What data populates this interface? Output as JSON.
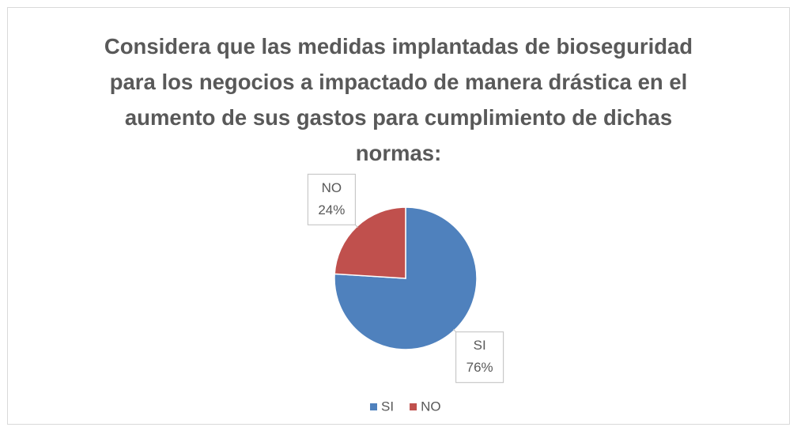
{
  "chart_data": {
    "type": "pie",
    "title": "Considera que las medidas implantadas de bioseguridad para los negocios a impactado de manera drástica en el aumento de sus gastos para cumplimiento de dichas normas:",
    "categories": [
      "SI",
      "NO"
    ],
    "values": [
      76,
      24
    ],
    "value_labels": [
      "76%",
      "24%"
    ],
    "colors": [
      "#4f81bd",
      "#c0504d"
    ],
    "legend": "bottom"
  }
}
